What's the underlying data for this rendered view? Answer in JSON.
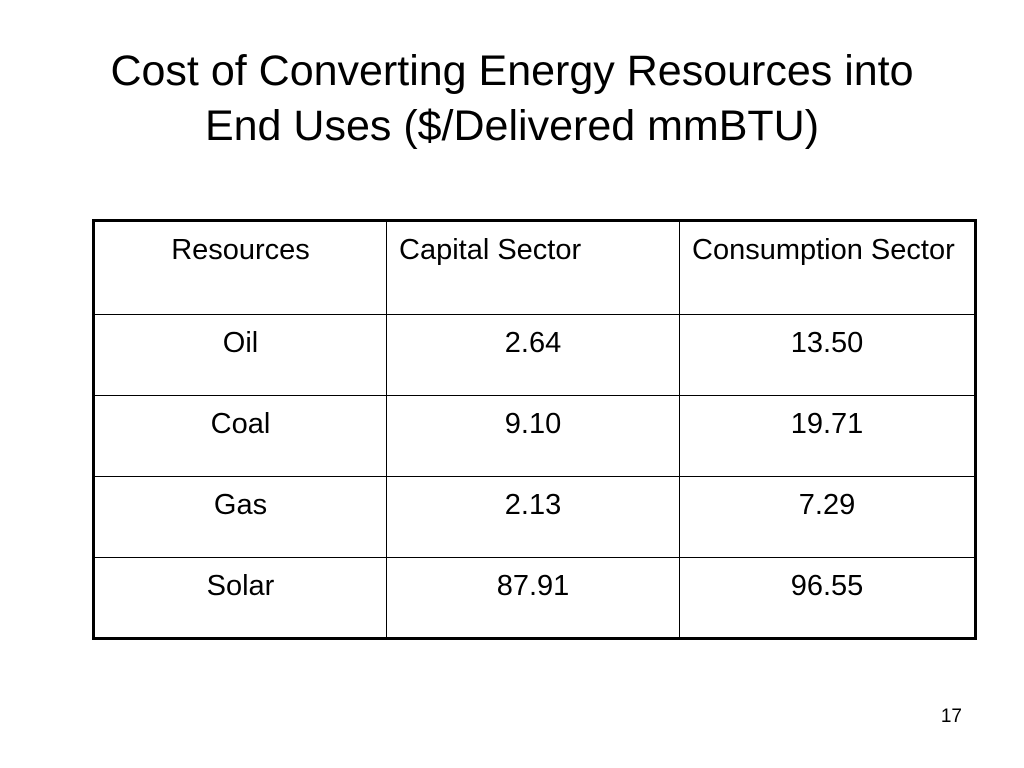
{
  "slide": {
    "title_line1": "Cost of Converting Energy Resources into",
    "title_line2": "End Uses ($/Delivered mmBTU)",
    "page_number": "17"
  },
  "table": {
    "headers": [
      "Resources",
      "Capital Sector",
      "Consumption Sector"
    ],
    "rows": [
      [
        "Oil",
        "2.64",
        "13.50"
      ],
      [
        "Coal",
        "9.10",
        "19.71"
      ],
      [
        "Gas",
        "2.13",
        "7.29"
      ],
      [
        "Solar",
        "87.91",
        "96.55"
      ]
    ]
  }
}
